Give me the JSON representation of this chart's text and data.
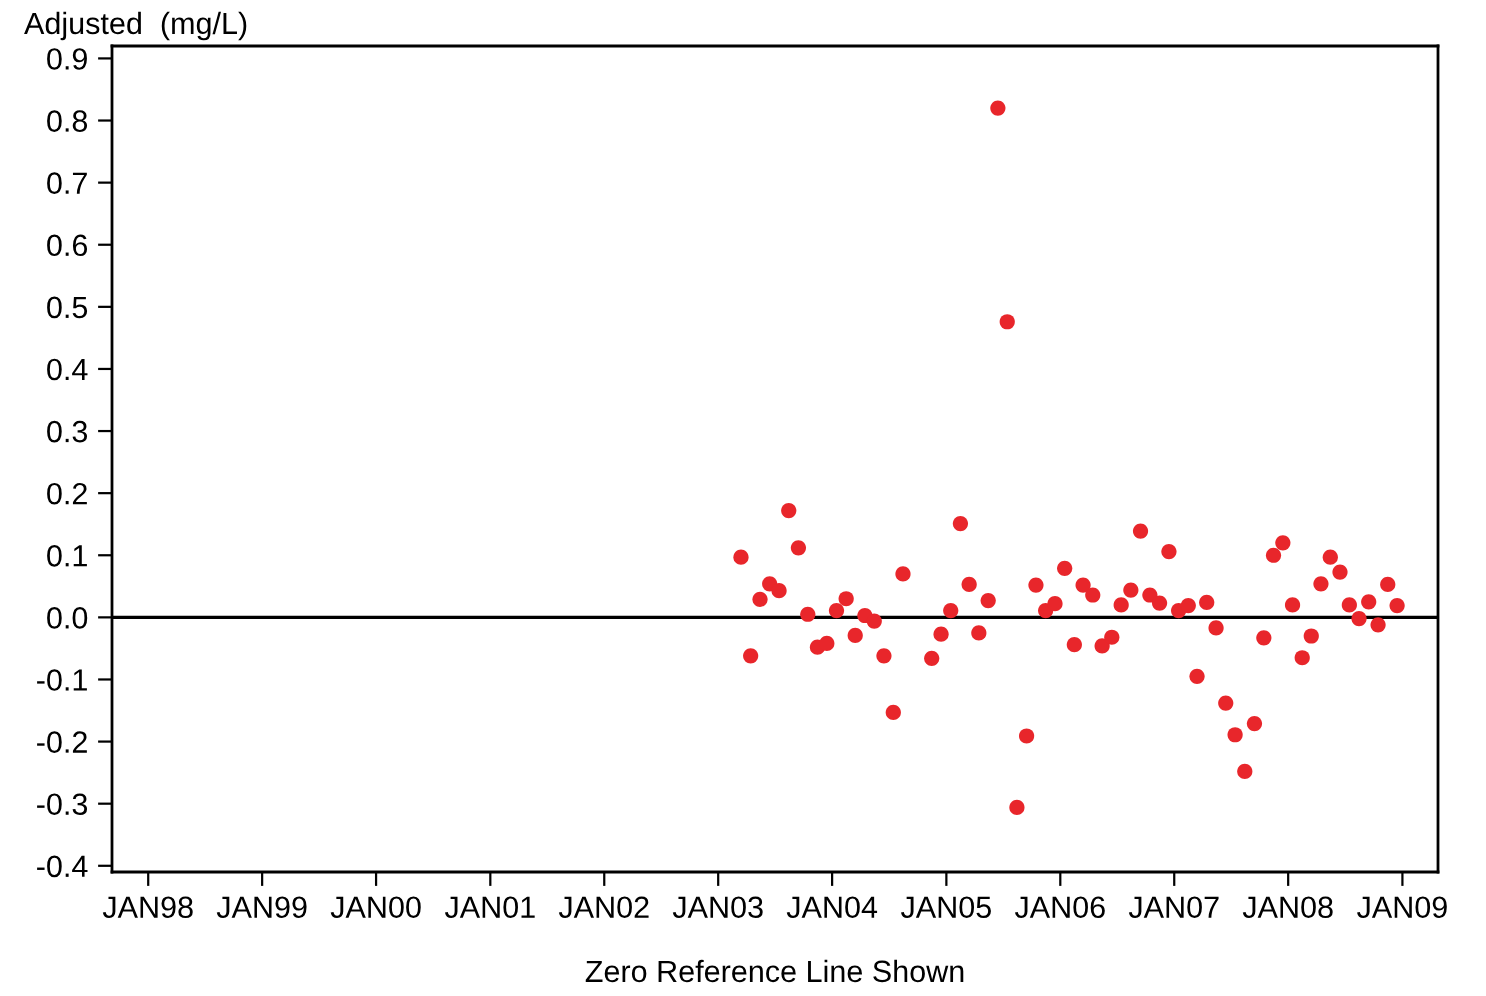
{
  "chart_data": {
    "type": "scatter",
    "ylabel": "Adjusted  (mg/L)",
    "annotations": [
      "Zero Reference Line Shown"
    ],
    "x": [
      "2003-03",
      "2003-04",
      "2003-05",
      "2003-06",
      "2003-07",
      "2003-08",
      "2003-09",
      "2003-10",
      "2003-11",
      "2003-12",
      "2004-01",
      "2004-02",
      "2004-03",
      "2004-04",
      "2004-05",
      "2004-06",
      "2004-07",
      "2004-08",
      "2004-11",
      "2004-12",
      "2005-01",
      "2005-02",
      "2005-03",
      "2005-04",
      "2005-05",
      "2005-06",
      "2005-07",
      "2005-08",
      "2005-09",
      "2005-10",
      "2005-11",
      "2005-12",
      "2006-01",
      "2006-02",
      "2006-03",
      "2006-04",
      "2006-05",
      "2006-06",
      "2006-07",
      "2006-08",
      "2006-09",
      "2006-10",
      "2006-11",
      "2006-12",
      "2007-01",
      "2007-02",
      "2007-03",
      "2007-04",
      "2007-05",
      "2007-06",
      "2007-07",
      "2007-08",
      "2007-09",
      "2007-10",
      "2007-11",
      "2007-12",
      "2008-01",
      "2008-02",
      "2008-03",
      "2008-04",
      "2008-05",
      "2008-06",
      "2008-07",
      "2008-08",
      "2008-09",
      "2008-10",
      "2008-11",
      "2008-12"
    ],
    "series": [
      {
        "color": "#e8262b",
        "values": [
          0.097,
          -0.062,
          0.029,
          0.054,
          0.043,
          0.172,
          0.112,
          0.005,
          -0.048,
          -0.042,
          0.011,
          0.03,
          -0.029,
          0.003,
          -0.006,
          -0.062,
          -0.153,
          0.07,
          -0.066,
          -0.027,
          0.011,
          0.151,
          0.053,
          -0.025,
          0.027,
          0.82,
          0.476,
          -0.306,
          -0.191,
          0.052,
          0.011,
          0.022,
          0.079,
          -0.044,
          0.052,
          0.036,
          -0.046,
          -0.032,
          0.02,
          0.044,
          0.139,
          0.036,
          0.023,
          0.106,
          0.011,
          0.019,
          -0.095,
          0.024,
          -0.017,
          -0.138,
          -0.189,
          -0.248,
          -0.171,
          -0.033,
          0.1,
          0.12,
          0.02,
          -0.065,
          -0.03,
          0.054,
          0.097,
          0.073,
          0.02,
          -0.002,
          0.025,
          -0.012,
          0.053,
          0.019
        ]
      }
    ],
    "marker": "circle",
    "xlim": [
      "1997-09-07",
      "2009-04-25"
    ],
    "xticks": [
      {
        "value": "1998-01-01",
        "label": "JAN98"
      },
      {
        "value": "1999-01-01",
        "label": "JAN99"
      },
      {
        "value": "2000-01-01",
        "label": "JAN00"
      },
      {
        "value": "2001-01-01",
        "label": "JAN01"
      },
      {
        "value": "2002-01-01",
        "label": "JAN02"
      },
      {
        "value": "2003-01-01",
        "label": "JAN03"
      },
      {
        "value": "2004-01-01",
        "label": "JAN04"
      },
      {
        "value": "2005-01-01",
        "label": "JAN05"
      },
      {
        "value": "2006-01-01",
        "label": "JAN06"
      },
      {
        "value": "2007-01-01",
        "label": "JAN07"
      },
      {
        "value": "2008-01-01",
        "label": "JAN08"
      },
      {
        "value": "2009-01-01",
        "label": "JAN09"
      }
    ],
    "ylim": [
      -0.41,
      0.92
    ],
    "yticks": [
      {
        "value": -0.4,
        "label": "-0.4"
      },
      {
        "value": -0.3,
        "label": "-0.3"
      },
      {
        "value": -0.2,
        "label": "-0.2"
      },
      {
        "value": -0.1,
        "label": "-0.1"
      },
      {
        "value": 0.0,
        "label": "0.0"
      },
      {
        "value": 0.1,
        "label": "0.1"
      },
      {
        "value": 0.2,
        "label": "0.2"
      },
      {
        "value": 0.3,
        "label": "0.3"
      },
      {
        "value": 0.4,
        "label": "0.4"
      },
      {
        "value": 0.5,
        "label": "0.5"
      },
      {
        "value": 0.6,
        "label": "0.6"
      },
      {
        "value": 0.7,
        "label": "0.7"
      },
      {
        "value": 0.8,
        "label": "0.8"
      },
      {
        "value": 0.9,
        "label": "0.9"
      }
    ],
    "ref_lines": [
      {
        "axis": "y",
        "value": 0,
        "color": "#000000",
        "line_style": "solid"
      }
    ],
    "grid": false
  }
}
